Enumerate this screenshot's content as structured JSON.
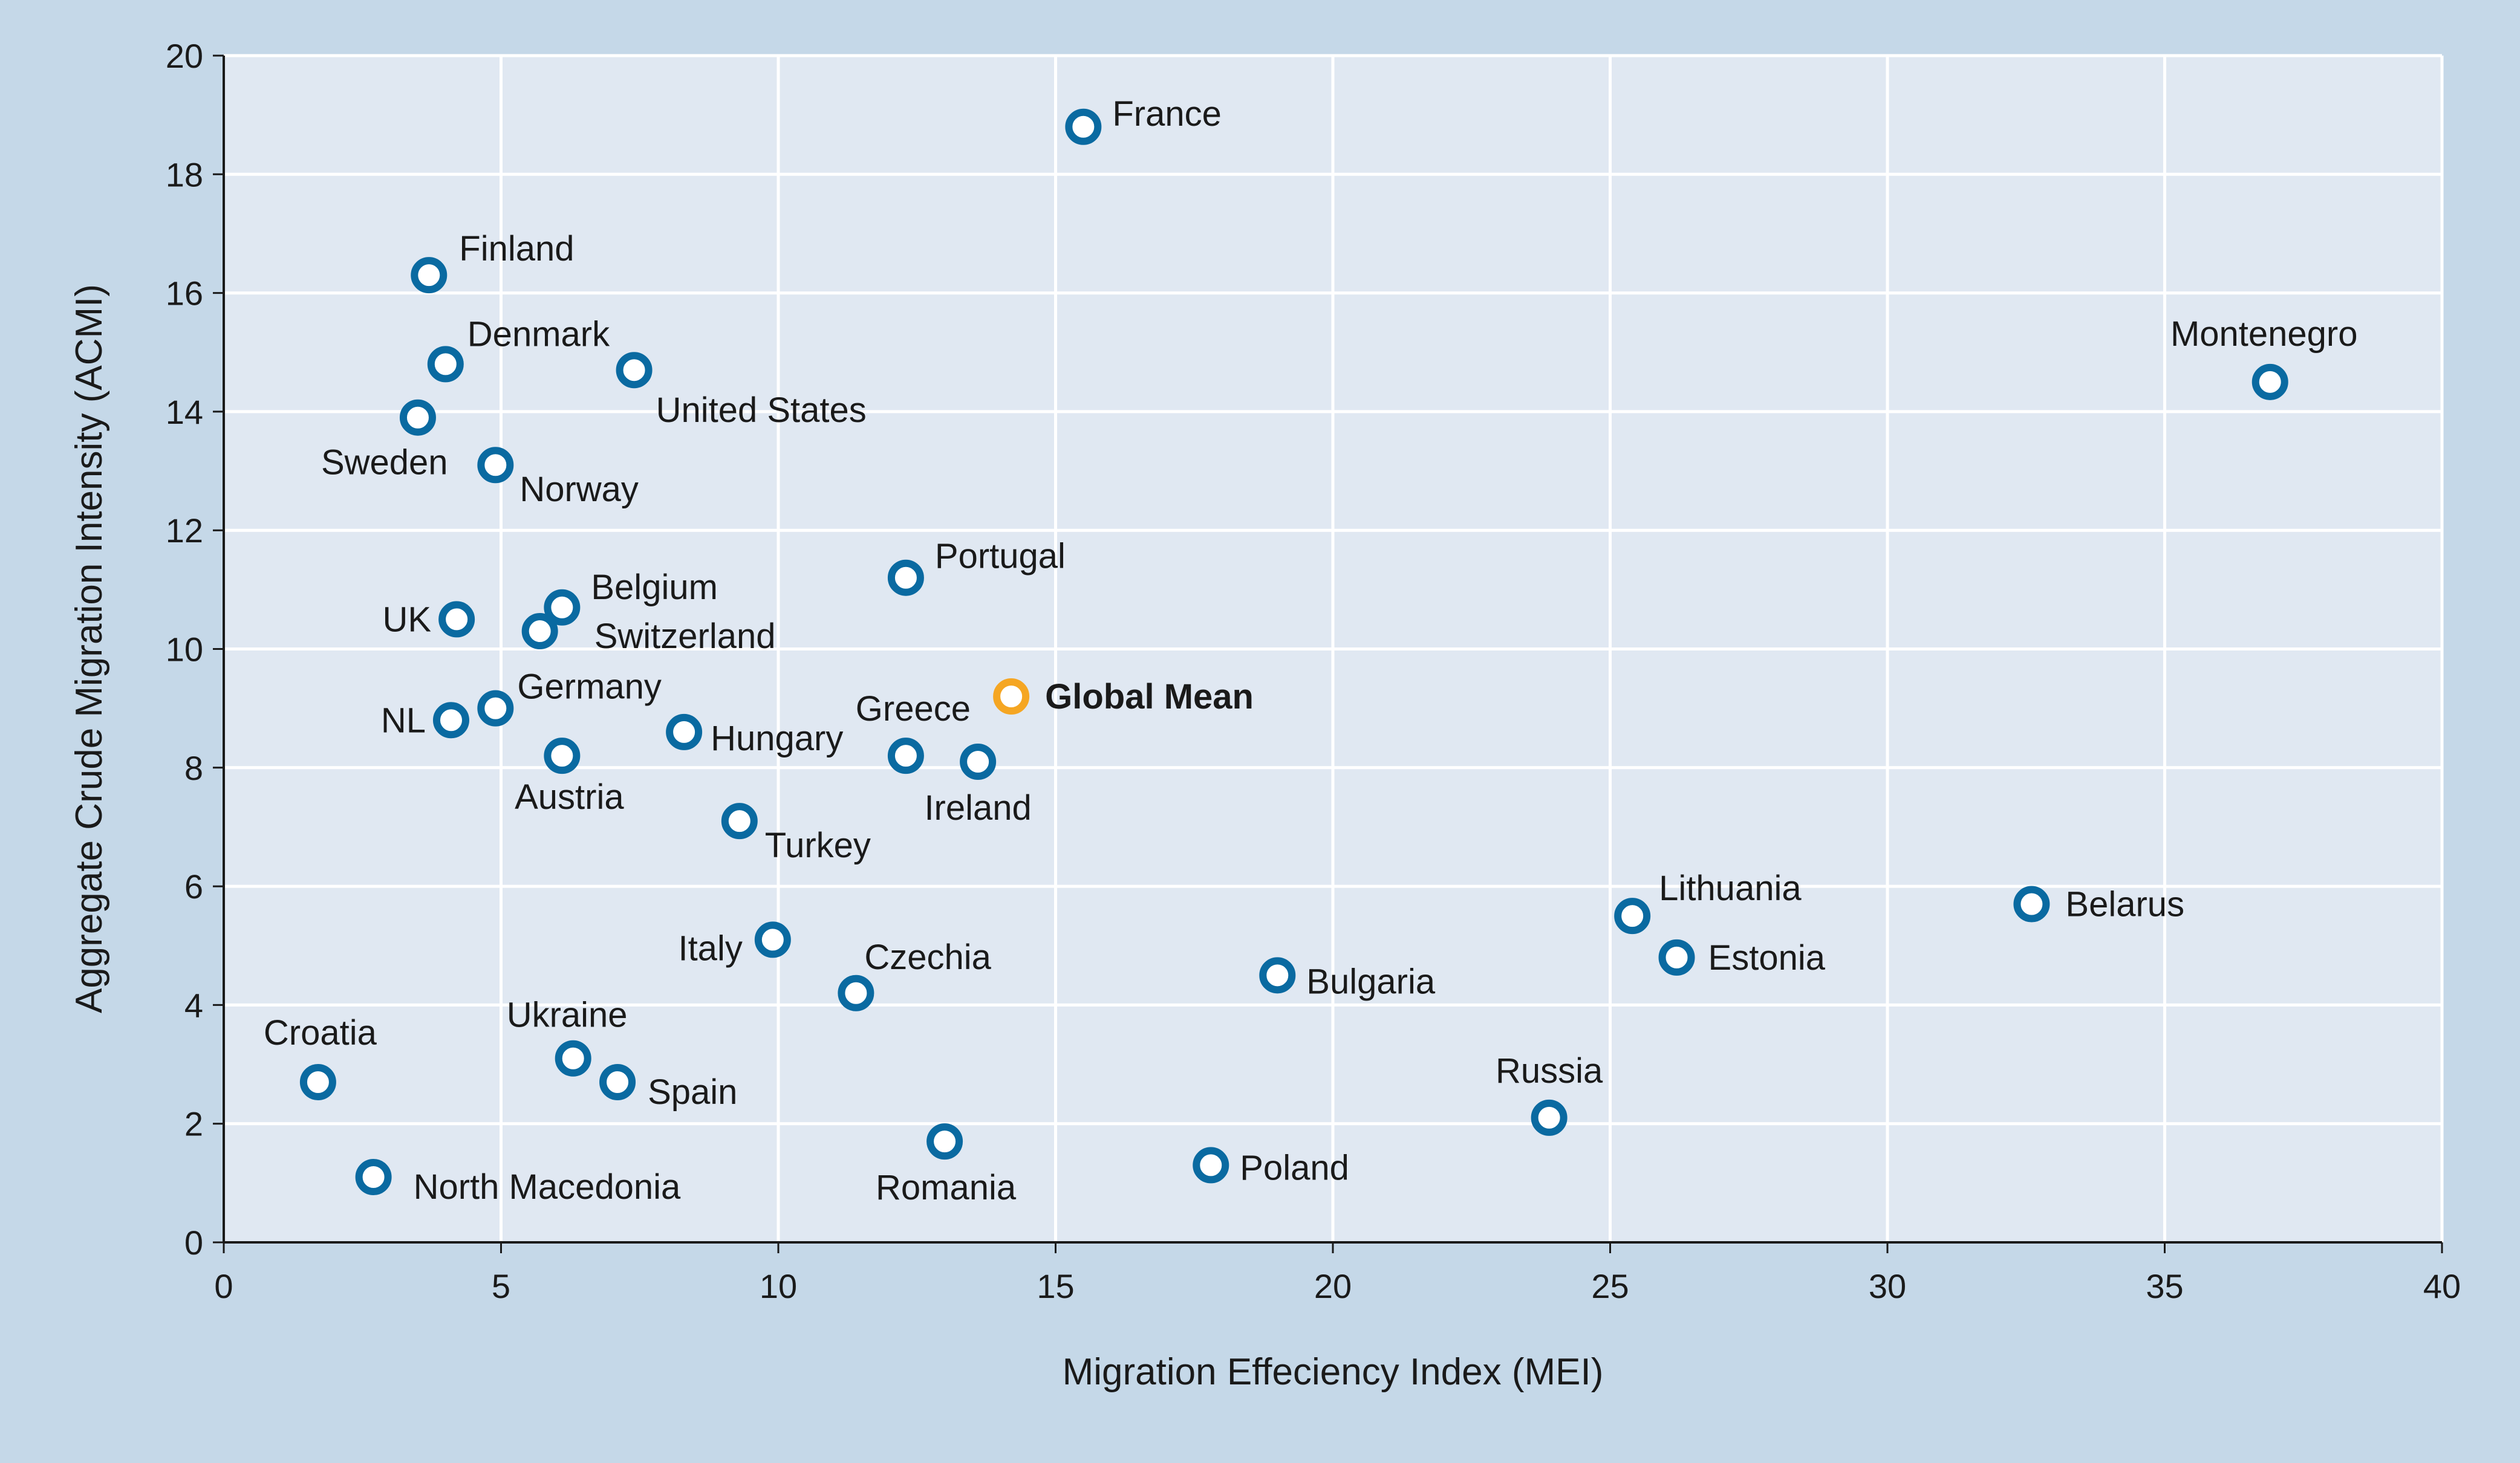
{
  "chart_data": {
    "type": "scatter",
    "xlabel": "Migration Effeciency Index (MEI)",
    "ylabel": "Aggregate Crude Migration Intensity (ACMI)",
    "xlim": [
      0,
      40
    ],
    "ylim": [
      0,
      20
    ],
    "xticks": [
      0,
      5,
      10,
      15,
      20,
      25,
      30,
      35,
      40
    ],
    "yticks": [
      0,
      2,
      4,
      6,
      8,
      10,
      12,
      14,
      16,
      18,
      20
    ],
    "grid": "vertical and horizontal, white",
    "colors": {
      "point": "#0a6aa1",
      "highlight": "#f5a623",
      "plot_bg": "#e0e8f2",
      "frame_bg": "#c5d8e8"
    },
    "points": [
      {
        "label": "France",
        "x": 15.5,
        "y": 18.8
      },
      {
        "label": "Finland",
        "x": 3.7,
        "y": 16.3
      },
      {
        "label": "Denmark",
        "x": 4.0,
        "y": 14.8
      },
      {
        "label": "United States",
        "x": 7.4,
        "y": 14.7
      },
      {
        "label": "Montenegro",
        "x": 36.9,
        "y": 14.5
      },
      {
        "label": "Sweden",
        "x": 3.5,
        "y": 13.9
      },
      {
        "label": "Norway",
        "x": 4.9,
        "y": 13.1
      },
      {
        "label": "Portugal",
        "x": 12.3,
        "y": 11.2
      },
      {
        "label": "Belgium",
        "x": 6.1,
        "y": 10.7
      },
      {
        "label": "UK",
        "x": 4.2,
        "y": 10.5
      },
      {
        "label": "Switzerland",
        "x": 5.7,
        "y": 10.3
      },
      {
        "label": "Global Mean",
        "x": 14.2,
        "y": 9.2,
        "highlight": true
      },
      {
        "label": "Germany",
        "x": 4.9,
        "y": 9.0
      },
      {
        "label": "NL",
        "x": 4.1,
        "y": 8.8
      },
      {
        "label": "Hungary",
        "x": 8.3,
        "y": 8.6
      },
      {
        "label": "Greece",
        "x": 12.3,
        "y": 8.2
      },
      {
        "label": "Austria",
        "x": 6.1,
        "y": 8.2
      },
      {
        "label": "Ireland",
        "x": 13.6,
        "y": 8.1
      },
      {
        "label": "Turkey",
        "x": 9.3,
        "y": 7.1
      },
      {
        "label": "Belarus",
        "x": 32.6,
        "y": 5.7
      },
      {
        "label": "Lithuania",
        "x": 25.4,
        "y": 5.5
      },
      {
        "label": "Italy",
        "x": 9.9,
        "y": 5.1
      },
      {
        "label": "Estonia",
        "x": 26.2,
        "y": 4.8
      },
      {
        "label": "Bulgaria",
        "x": 19.0,
        "y": 4.5
      },
      {
        "label": "Czechia",
        "x": 11.4,
        "y": 4.2
      },
      {
        "label": "Ukraine",
        "x": 6.3,
        "y": 3.1
      },
      {
        "label": "Croatia",
        "x": 1.7,
        "y": 2.7
      },
      {
        "label": "Spain",
        "x": 7.1,
        "y": 2.7
      },
      {
        "label": "Russia",
        "x": 23.9,
        "y": 2.1
      },
      {
        "label": "Romania",
        "x": 13.0,
        "y": 1.7
      },
      {
        "label": "Poland",
        "x": 17.8,
        "y": 1.3
      },
      {
        "label": "North Macedonia",
        "x": 2.7,
        "y": 1.1
      }
    ]
  }
}
